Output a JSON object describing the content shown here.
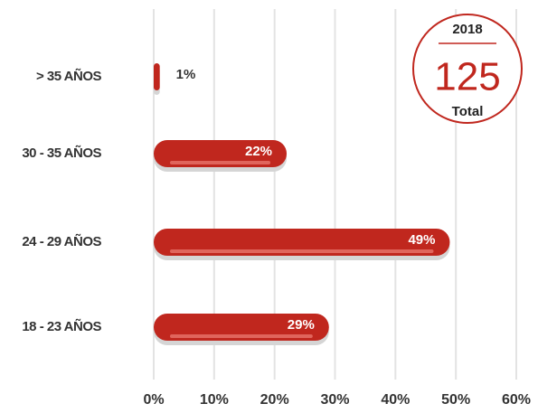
{
  "chart_data": {
    "type": "bar",
    "orientation": "horizontal",
    "categories": [
      "> 35 AÑOS",
      "30 - 35 AÑOS",
      "24 - 29 AÑOS",
      "18 - 23 AÑOS"
    ],
    "values": [
      1,
      22,
      49,
      29
    ],
    "value_labels": [
      "1%",
      "22%",
      "49%",
      "29%"
    ],
    "color": "#c0271e",
    "xlim": [
      0,
      60
    ],
    "xticks": [
      {
        "value": 0,
        "label": "0%"
      },
      {
        "value": 10,
        "label": "10%"
      },
      {
        "value": 20,
        "label": "20%"
      },
      {
        "value": 30,
        "label": "30%"
      },
      {
        "value": 40,
        "label": "40%"
      },
      {
        "value": 50,
        "label": "50%"
      },
      {
        "value": 60,
        "label": "60%"
      }
    ],
    "grid": true
  },
  "badge": {
    "year": "2018",
    "value": 125,
    "label": "Total"
  }
}
